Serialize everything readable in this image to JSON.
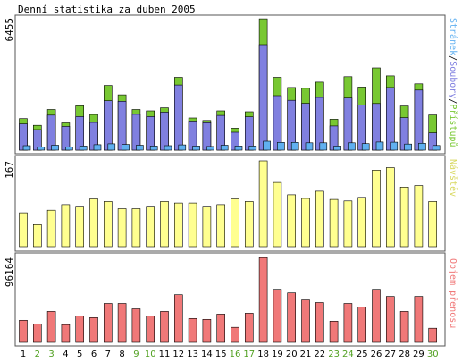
{
  "title": "Denní statistika za duben 2005",
  "colors": {
    "hits": "#78c832",
    "files": "#8080e0",
    "pages": "#60b0f0",
    "visits": "#ffff90",
    "kbytes": "#f07878",
    "text_default": "#000000",
    "text_weekend": "#50a020"
  },
  "chart_data": [
    {
      "type": "bar",
      "panel": "top",
      "ymax_label": "6455",
      "ylim": [
        0,
        6455
      ],
      "legend": {
        "hits": "Přístupů",
        "sep1": "/",
        "files": "Soubory",
        "sep2": "/",
        "pages": "Stránek"
      },
      "categories": [
        "1",
        "2",
        "3",
        "4",
        "5",
        "6",
        "7",
        "8",
        "9",
        "10",
        "11",
        "12",
        "13",
        "14",
        "15",
        "16",
        "17",
        "18",
        "19",
        "20",
        "21",
        "22",
        "23",
        "24",
        "25",
        "26",
        "27",
        "28",
        "29",
        "30"
      ],
      "series": [
        {
          "name": "Přístupů",
          "values": [
            1550,
            1220,
            2000,
            1340,
            2180,
            1750,
            3180,
            2720,
            2000,
            1930,
            2080,
            3580,
            1580,
            1460,
            1930,
            1080,
            1890,
            6450,
            3580,
            3080,
            3040,
            3340,
            1520,
            3610,
            3100,
            4040,
            3650,
            2170,
            3260,
            1730
          ]
        },
        {
          "name": "Soubory",
          "values": [
            1290,
            1010,
            1720,
            1170,
            1650,
            1360,
            2430,
            2400,
            1760,
            1650,
            1870,
            3200,
            1430,
            1350,
            1710,
            880,
            1640,
            5180,
            2680,
            2450,
            2300,
            2590,
            1190,
            2560,
            2210,
            2290,
            3080,
            1600,
            2950,
            850
          ]
        },
        {
          "name": "Stránek",
          "values": [
            220,
            150,
            240,
            160,
            200,
            270,
            310,
            280,
            240,
            200,
            220,
            260,
            200,
            180,
            240,
            200,
            200,
            440,
            380,
            380,
            360,
            360,
            200,
            360,
            320,
            400,
            390,
            300,
            340,
            230
          ]
        }
      ]
    },
    {
      "type": "bar",
      "panel": "middle",
      "ymax_label": "167",
      "ylim": [
        0,
        167
      ],
      "legend": {
        "visits": "Návštěv"
      },
      "categories": [
        "1",
        "2",
        "3",
        "4",
        "5",
        "6",
        "7",
        "8",
        "9",
        "10",
        "11",
        "12",
        "13",
        "14",
        "15",
        "16",
        "17",
        "18",
        "19",
        "20",
        "21",
        "22",
        "23",
        "24",
        "25",
        "26",
        "27",
        "28",
        "29",
        "30"
      ],
      "series": [
        {
          "name": "Návštěv",
          "values": [
            66,
            43,
            71,
            82,
            77,
            93,
            88,
            74,
            74,
            77,
            88,
            85,
            85,
            77,
            82,
            93,
            88,
            167,
            125,
            101,
            94,
            108,
            92,
            89,
            96,
            149,
            154,
            116,
            119,
            88
          ]
        }
      ]
    },
    {
      "type": "bar",
      "panel": "bottom",
      "ymax_label": "96164",
      "ylim": [
        0,
        96164
      ],
      "legend": {
        "kbytes": "Objem přenosu"
      },
      "categories": [
        "1",
        "2",
        "3",
        "4",
        "5",
        "6",
        "7",
        "8",
        "9",
        "10",
        "11",
        "12",
        "13",
        "14",
        "15",
        "16",
        "17",
        "18",
        "19",
        "20",
        "21",
        "22",
        "23",
        "24",
        "25",
        "26",
        "27",
        "28",
        "29",
        "30"
      ],
      "series": [
        {
          "name": "Objem přenosu",
          "values": [
            25000,
            21000,
            35000,
            20000,
            30000,
            28000,
            44000,
            44000,
            38000,
            30000,
            35000,
            54000,
            27000,
            26000,
            32000,
            17000,
            33000,
            96000,
            60000,
            56000,
            48000,
            45000,
            24000,
            44000,
            40000,
            60000,
            52000,
            35000,
            52000,
            16000
          ]
        }
      ]
    }
  ],
  "x_axis": {
    "labels": [
      "1",
      "2",
      "3",
      "4",
      "5",
      "6",
      "7",
      "8",
      "9",
      "10",
      "11",
      "12",
      "13",
      "14",
      "15",
      "16",
      "17",
      "18",
      "19",
      "20",
      "21",
      "22",
      "23",
      "24",
      "25",
      "26",
      "27",
      "28",
      "29",
      "30"
    ],
    "weekend": [
      false,
      true,
      true,
      false,
      false,
      false,
      false,
      false,
      true,
      true,
      false,
      false,
      false,
      false,
      false,
      true,
      true,
      false,
      false,
      false,
      false,
      false,
      true,
      true,
      false,
      false,
      false,
      false,
      false,
      true
    ]
  }
}
